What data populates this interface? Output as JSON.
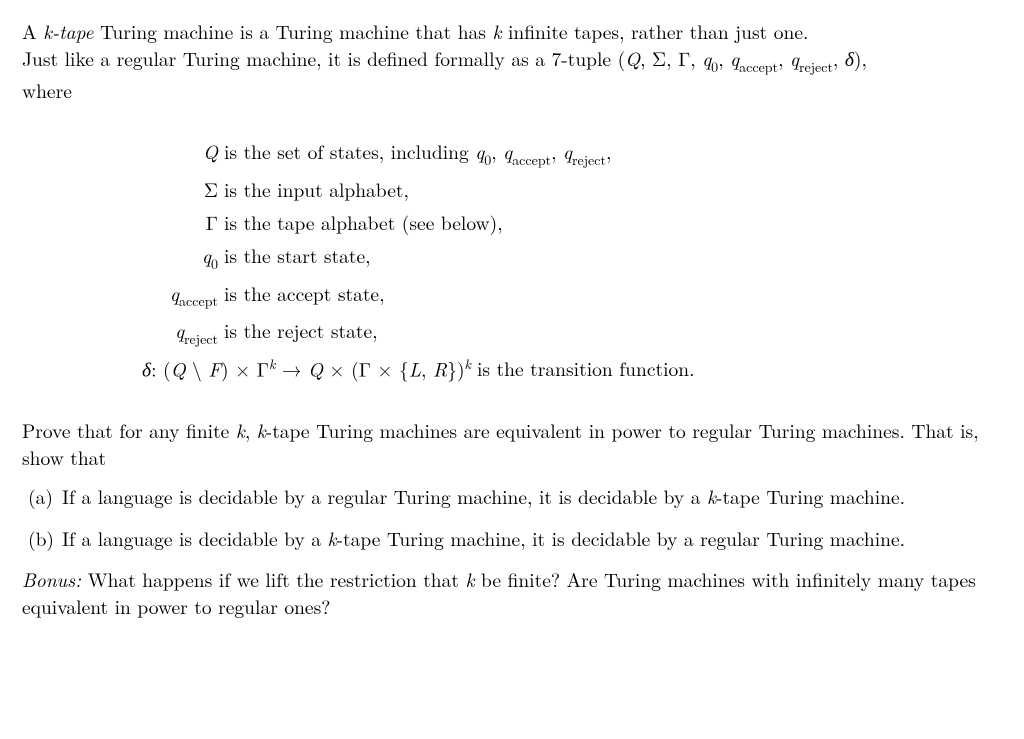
{
  "intro": {
    "line1_pre": "A ",
    "ktape": "k-tape",
    "line1_mid": " Turing machine is a Turing machine that has ",
    "k": "k",
    "line1_post": " infinite tapes, rather than just one.",
    "line2_pre": "Just like a regular Turing machine, it is defined formally as a 7-tuple (",
    "tuple_Q": "Q",
    "comma": ", ",
    "tuple_Sigma": "Σ",
    "tuple_Gamma": "Γ",
    "tuple_q0": "q",
    "tuple_q0_sub": "0",
    "tuple_qacc": "q",
    "tuple_qacc_sub": "accept",
    "tuple_qrej": "q",
    "tuple_qrej_sub": "reject",
    "tuple_delta": "δ",
    "line2_post": "),",
    "where": "where"
  },
  "defs": {
    "Q": {
      "term": "Q",
      "pre": " is the set of states, including ",
      "q0": "q",
      "q0sub": "0",
      "sep1": ", ",
      "qa": "q",
      "qasub": "accept",
      "sep2": ", ",
      "qr": "q",
      "qrsub": "reject",
      "post": ","
    },
    "Sigma": {
      "term": "Σ",
      "text": " is the input alphabet,"
    },
    "Gamma": {
      "term": "Γ",
      "text": " is the tape alphabet (see below),"
    },
    "q0": {
      "term": "q",
      "termsub": "0",
      "text": " is the start state,"
    },
    "qacc": {
      "term": "q",
      "termsub": "accept",
      "text": " is the accept state,"
    },
    "qrej": {
      "term": "q",
      "termsub": "reject",
      "text": " is the reject state,"
    },
    "delta": {
      "d": "δ",
      "colon": ": (",
      "Q": "Q",
      "setminus": " \\ ",
      "F": "F",
      "cp1": ") × ",
      "G1": "Γ",
      "k1": "k",
      "arrow": " → ",
      "Q2": "Q",
      "times2": " × (",
      "G2": "Γ",
      "times3": " × {",
      "L": "L",
      "comma": ", ",
      "R": "R",
      "close": "})",
      "k2": "k",
      "text": " is the transition function."
    }
  },
  "prove": {
    "pre": "Prove that for any finite ",
    "k1": "k",
    "mid": ", ",
    "k2": "k",
    "post": "-tape Turing machines are equivalent in power to regular Turing machines. That is, show that"
  },
  "parts": {
    "a": {
      "label": "(a)",
      "pre": "If a language is decidable by a regular Turing machine, it is decidable by a ",
      "k": "k",
      "post": "-tape Turing machine."
    },
    "b": {
      "label": "(b)",
      "pre": "If a language is decidable by a ",
      "k": "k",
      "post": "-tape Turing machine, it is decidable by a regular Turing machine."
    }
  },
  "bonus": {
    "label": "Bonus:",
    "pre": " What happens if we lift the restriction that ",
    "k": "k",
    "post": " be finite? Are Turing machines with infinitely many tapes equivalent in power to regular ones?"
  }
}
